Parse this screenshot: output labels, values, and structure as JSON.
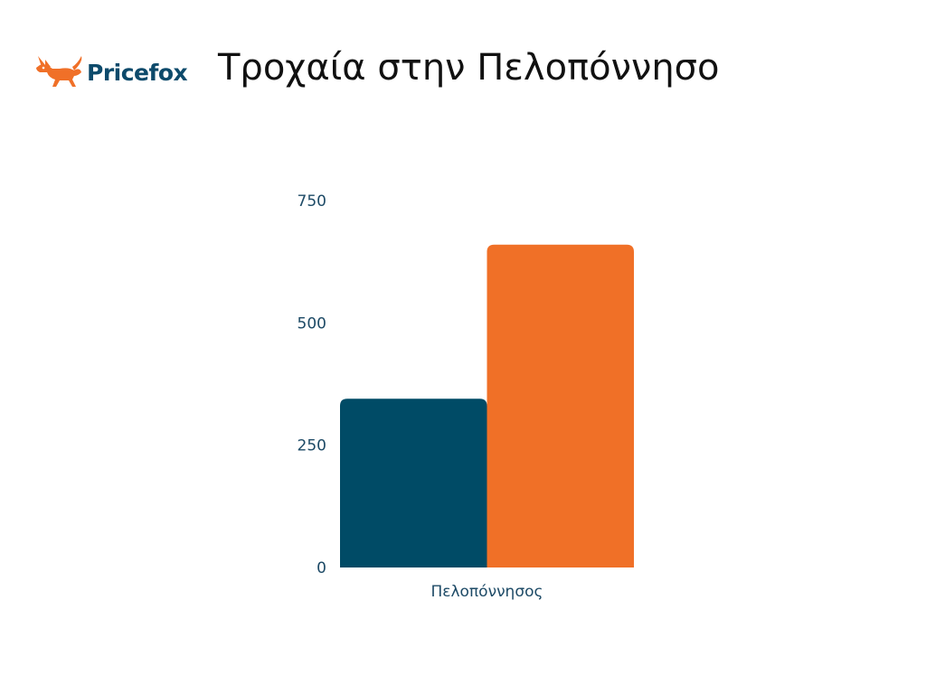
{
  "brand": {
    "name": "Pricefox",
    "text_color": "#0d4a6b",
    "icon": "fox-logo-icon",
    "icon_color": "#f07028"
  },
  "title": "Τροχαία στην Πελοπόννησο",
  "chart_data": {
    "type": "bar",
    "title": "Τροχαία στην Πελοπόννησο",
    "categories": [
      "Πελοπόννησος"
    ],
    "series": [
      {
        "values": [
          345
        ],
        "color": "#004b66"
      },
      {
        "values": [
          660
        ],
        "color": "#f07027"
      }
    ],
    "yticks": [
      0,
      250,
      500,
      750
    ],
    "ylim": [
      0,
      750
    ],
    "xlabel": "",
    "ylabel": "",
    "grid": false,
    "legend": "none"
  }
}
